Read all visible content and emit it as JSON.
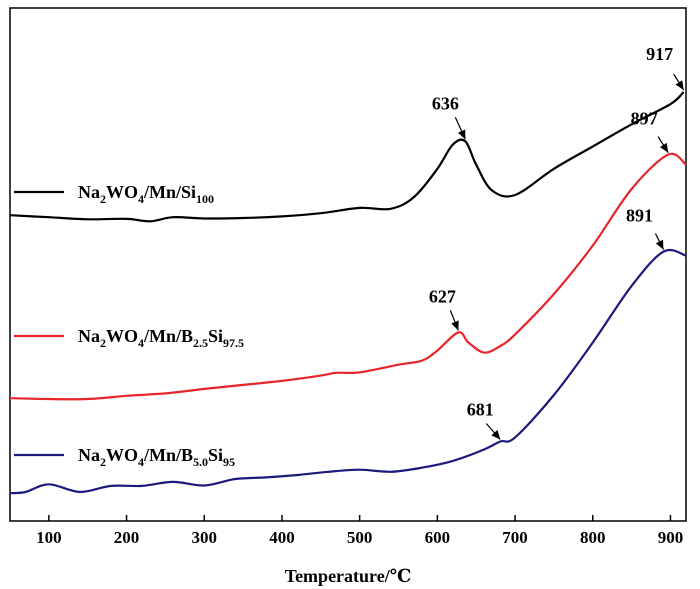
{
  "chart_data": {
    "type": "line",
    "title": "",
    "xlabel": "Temperature/℃",
    "ylabel": "",
    "xlim": [
      50,
      920
    ],
    "ylim": [
      0,
      100
    ],
    "xticks": [
      100,
      200,
      300,
      400,
      500,
      600,
      700,
      800,
      900
    ],
    "grid": false,
    "legend_placement": "left",
    "series": [
      {
        "name": "Na2WO4/Mn/Si100",
        "legend_parts": [
          {
            "t": "Na",
            "sub": false
          },
          {
            "t": "2",
            "sub": true
          },
          {
            "t": "WO",
            "sub": false
          },
          {
            "t": "4",
            "sub": true
          },
          {
            "t": "/Mn/Si",
            "sub": false
          },
          {
            "t": "100",
            "sub": true
          }
        ],
        "color": "#000000",
        "x": [
          50,
          100,
          150,
          200,
          230,
          260,
          300,
          350,
          400,
          450,
          500,
          540,
          570,
          600,
          620,
          636,
          650,
          670,
          700,
          750,
          800,
          850,
          900,
          917
        ],
        "y": [
          69.5,
          69,
          68.5,
          68.6,
          68.0,
          69.0,
          68.7,
          68.8,
          69.2,
          70.0,
          71.3,
          71.1,
          74.0,
          81.0,
          87.0,
          87.8,
          82.0,
          75.7,
          74.5,
          81.0,
          86.5,
          92.0,
          97.0,
          100
        ],
        "annotation": {
          "label": "636",
          "x": 636,
          "y": 87.8
        }
      },
      {
        "name": "Na2WO4/Mn/B2.5Si97.5",
        "legend_parts": [
          {
            "t": "Na",
            "sub": false
          },
          {
            "t": "2",
            "sub": true
          },
          {
            "t": "WO",
            "sub": false
          },
          {
            "t": "4",
            "sub": true
          },
          {
            "t": "/Mn/B",
            "sub": false
          },
          {
            "t": "2.5",
            "sub": true
          },
          {
            "t": "Si",
            "sub": false
          },
          {
            "t": "97.5",
            "sub": true
          }
        ],
        "color": "#e8252a",
        "x": [
          50,
          100,
          150,
          200,
          250,
          300,
          350,
          400,
          450,
          470,
          500,
          550,
          580,
          600,
          627,
          640,
          660,
          680,
          700,
          750,
          800,
          850,
          897,
          920
        ],
        "y": [
          24.2,
          24.0,
          24.0,
          24.8,
          25.4,
          26.5,
          27.5,
          28.5,
          29.8,
          30.5,
          30.6,
          32.5,
          33.5,
          36.0,
          40.5,
          38.0,
          35.5,
          37.0,
          40.0,
          50.0,
          62.0,
          76.0,
          84.5,
          82.0
        ],
        "annotation": {
          "label": "627",
          "x": 627,
          "y": 40.5
        }
      },
      {
        "name": "Na2WO4/Mn/B5.0Si95",
        "legend_parts": [
          {
            "t": "Na",
            "sub": false
          },
          {
            "t": "2",
            "sub": true
          },
          {
            "t": "WO",
            "sub": false
          },
          {
            "t": "4",
            "sub": true
          },
          {
            "t": "/Mn/B",
            "sub": false
          },
          {
            "t": "5.0",
            "sub": true
          },
          {
            "t": "Si",
            "sub": false
          },
          {
            "t": "95",
            "sub": true
          }
        ],
        "color": "#1c1a7c",
        "x": [
          50,
          70,
          100,
          140,
          180,
          220,
          260,
          300,
          340,
          380,
          420,
          460,
          500,
          540,
          580,
          620,
          660,
          681,
          700,
          750,
          800,
          850,
          891,
          920
        ],
        "y": [
          0.7,
          1.0,
          2.9,
          1.0,
          2.5,
          2.5,
          3.5,
          2.6,
          4.2,
          4.6,
          5.2,
          6.0,
          6.5,
          6.0,
          7.0,
          8.7,
          11.5,
          13.5,
          14.5,
          25.0,
          38.0,
          52.0,
          60.5,
          59.5
        ],
        "annotation": {
          "label": "681",
          "x": 681,
          "y": 13.5
        }
      }
    ],
    "extra_annotations": [
      {
        "label": "917",
        "x": 917,
        "y": 100,
        "series": 0
      },
      {
        "label": "897",
        "x": 897,
        "y": 84.5,
        "series": 1
      },
      {
        "label": "891",
        "x": 891,
        "y": 60.5,
        "series": 2
      }
    ]
  }
}
